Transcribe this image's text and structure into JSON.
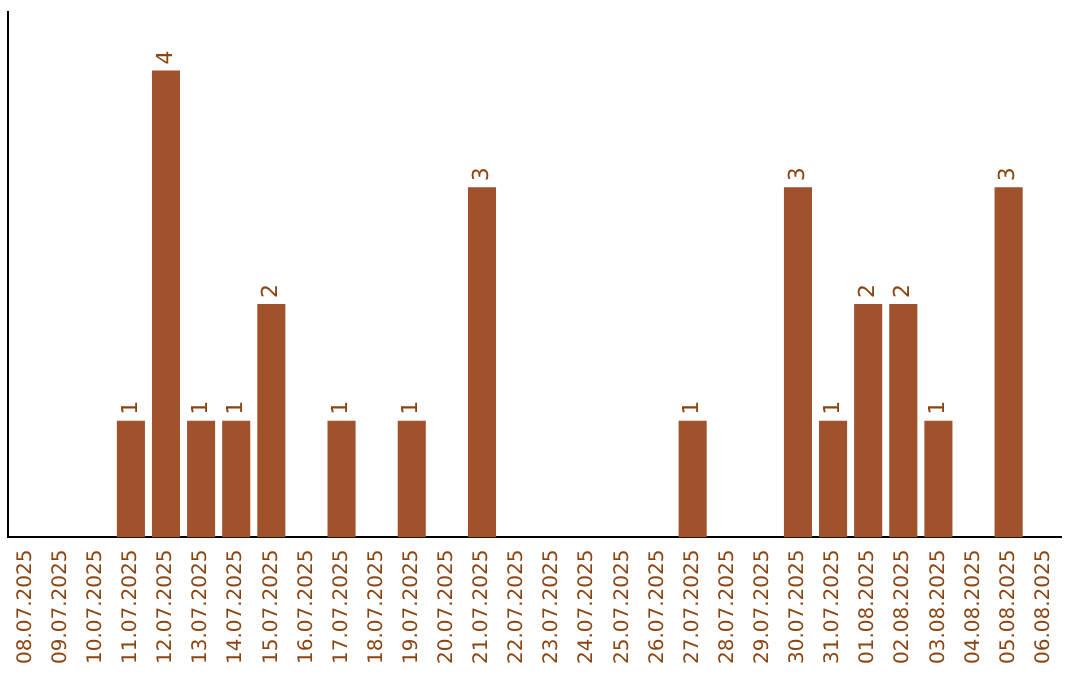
{
  "chart_data": {
    "type": "bar",
    "categories": [
      "08.07.2025",
      "09.07.2025",
      "10.07.2025",
      "11.07.2025",
      "12.07.2025",
      "13.07.2025",
      "14.07.2025",
      "15.07.2025",
      "16.07.2025",
      "17.07.2025",
      "18.07.2025",
      "19.07.2025",
      "20.07.2025",
      "21.07.2025",
      "22.07.2025",
      "23.07.2025",
      "24.07.2025",
      "25.07.2025",
      "26.07.2025",
      "27.07.2025",
      "28.07.2025",
      "29.07.2025",
      "30.07.2025",
      "31.07.2025",
      "01.08.2025",
      "02.08.2025",
      "03.08.2025",
      "04.08.2025",
      "05.08.2025",
      "06.08.2025"
    ],
    "values": [
      0,
      0,
      0,
      1,
      4,
      1,
      1,
      2,
      0,
      1,
      0,
      1,
      0,
      3,
      0,
      0,
      0,
      0,
      0,
      1,
      0,
      0,
      3,
      1,
      2,
      2,
      1,
      0,
      3,
      0
    ],
    "value_labels": [
      null,
      null,
      null,
      "1",
      "4",
      "1",
      "1",
      "2",
      null,
      "1",
      null,
      "1",
      null,
      "3",
      null,
      null,
      null,
      null,
      null,
      "1",
      null,
      null,
      "3",
      "1",
      "2",
      "2",
      "1",
      null,
      "3",
      null
    ],
    "color": "#a0522d",
    "tick_labels": "x",
    "grid": false,
    "legend": false
  }
}
